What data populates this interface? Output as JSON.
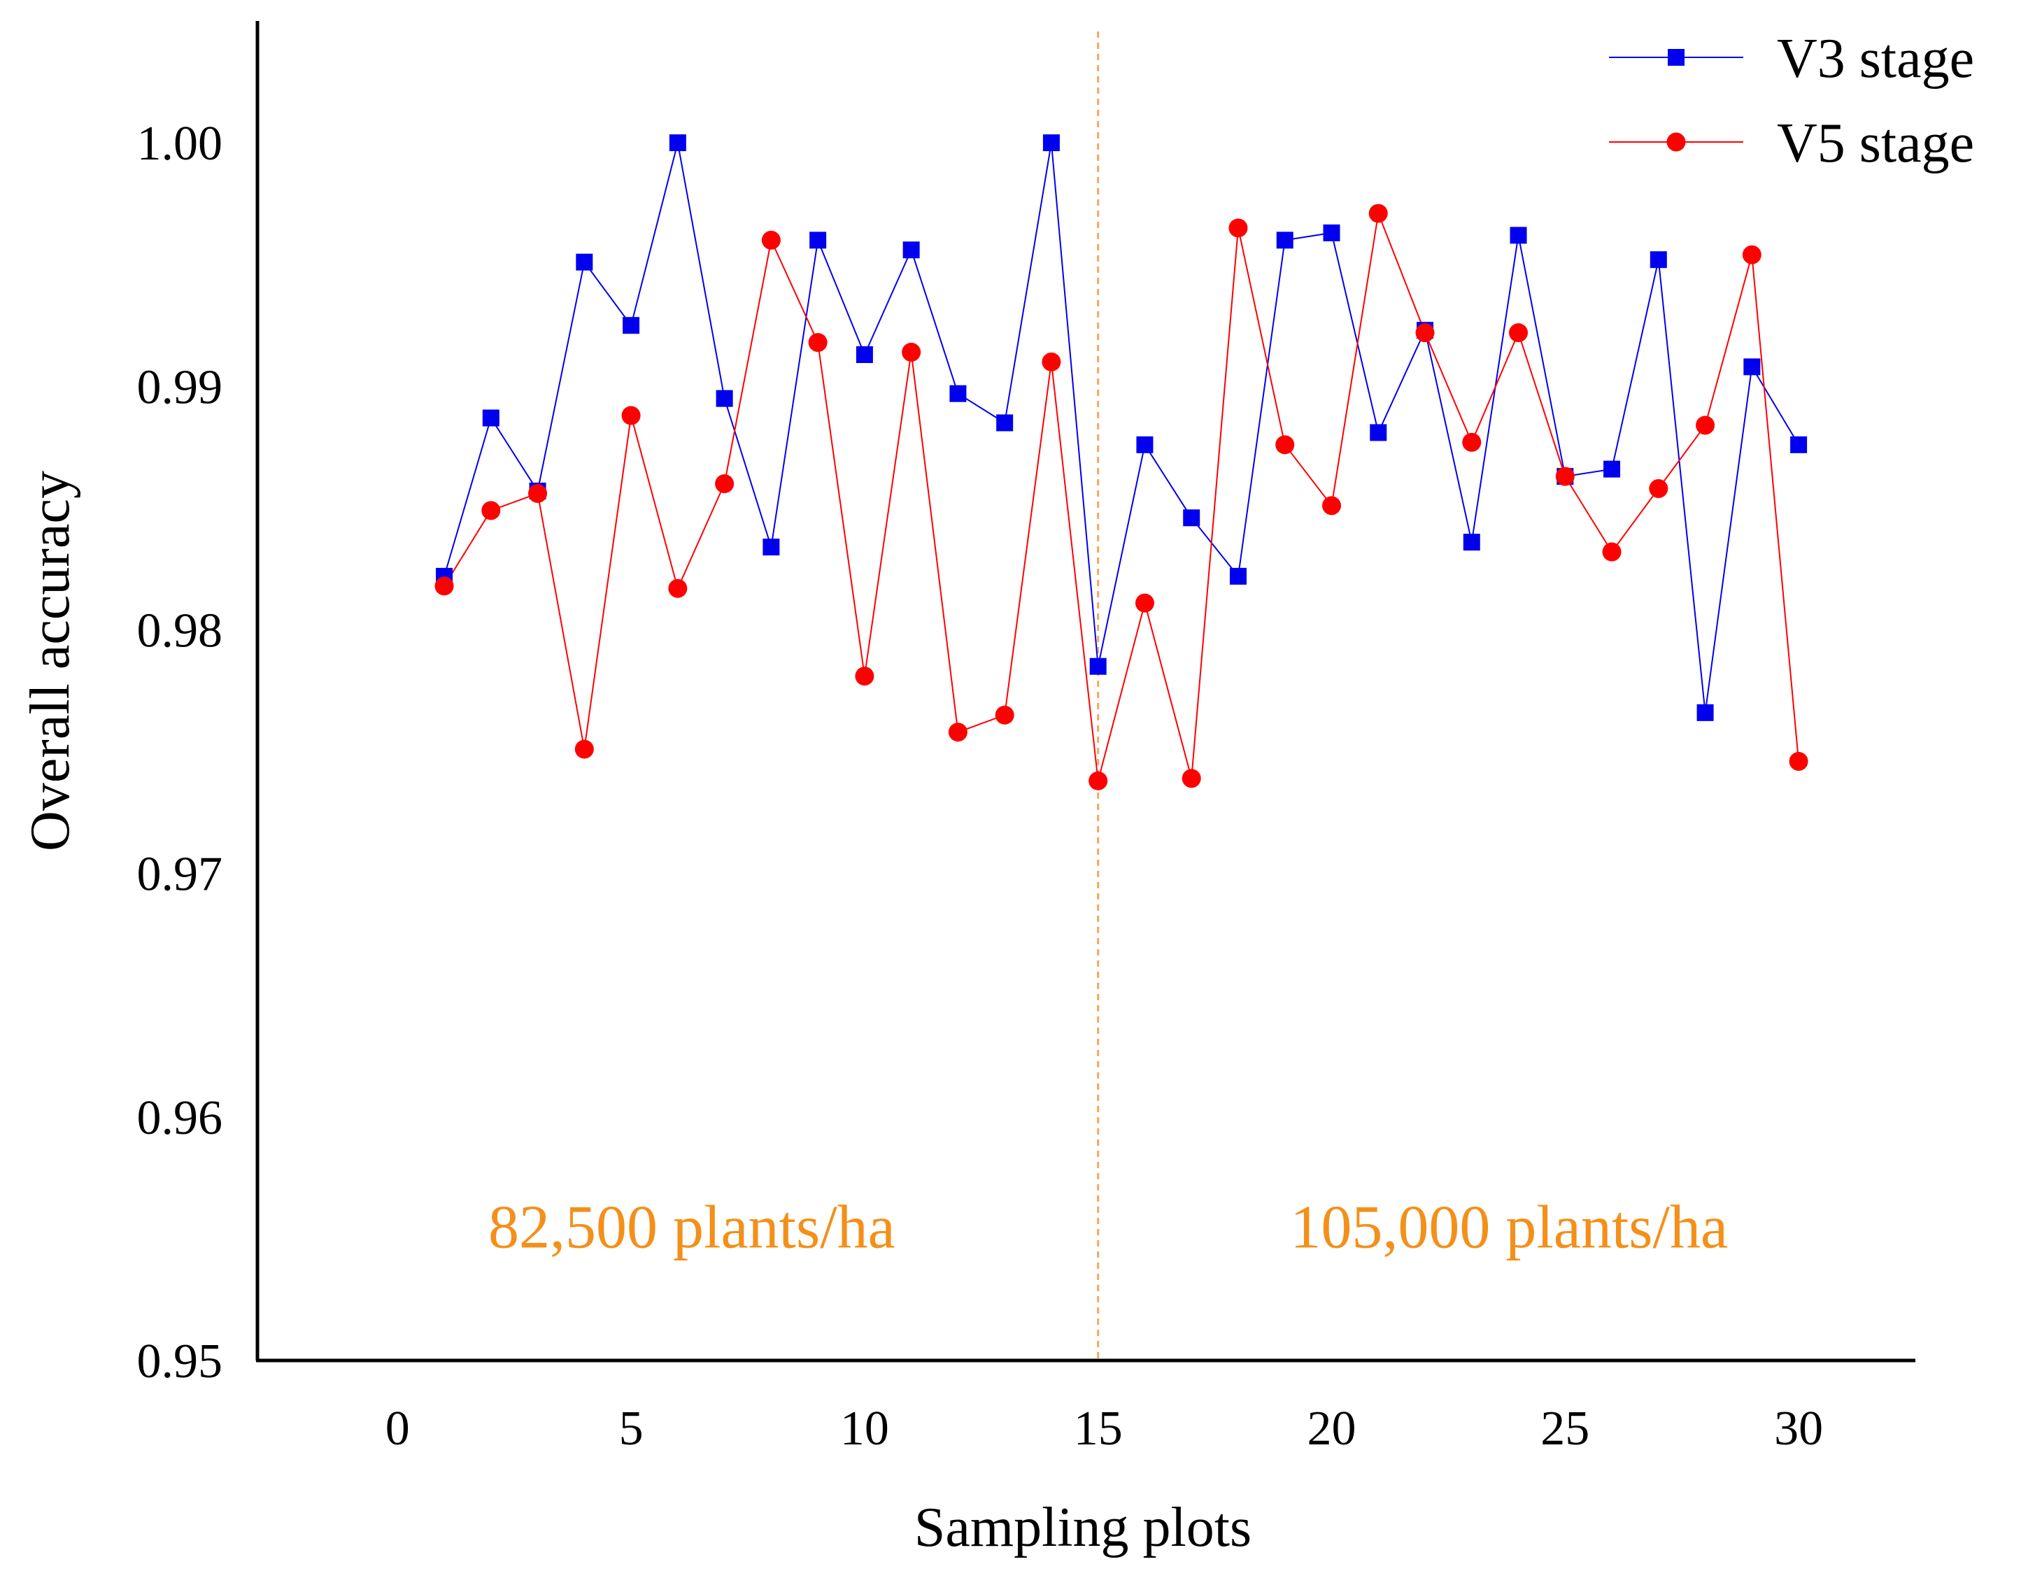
{
  "chart_data": {
    "type": "line",
    "title": "",
    "xlabel": "Sampling plots",
    "ylabel": "Overall accuracy",
    "xlim": [
      -3,
      32.5
    ],
    "ylim": [
      0.95,
      1.005
    ],
    "xticks": [
      0,
      5,
      10,
      15,
      20,
      25,
      30
    ],
    "xtick_labels": [
      "0",
      "5",
      "10",
      "15",
      "20",
      "25",
      "30"
    ],
    "yticks": [
      0.95,
      0.96,
      0.97,
      0.98,
      0.99,
      1.0
    ],
    "ytick_labels": [
      "0.95",
      "0.96",
      "0.97",
      "0.98",
      "0.99",
      "1.00"
    ],
    "grid": false,
    "legend_position": "top-right",
    "series": [
      {
        "name": "V3 stage",
        "color": "#0000ee",
        "marker": "square",
        "x": [
          1,
          2,
          3,
          4,
          5,
          6,
          7,
          8,
          9,
          10,
          11,
          12,
          13,
          14,
          15,
          16,
          17,
          18,
          19,
          20,
          21,
          22,
          23,
          24,
          25,
          26,
          27,
          28,
          29,
          30
        ],
        "values": [
          0.9822,
          0.9887,
          0.9857,
          0.9951,
          0.9925,
          1.0,
          0.9895,
          0.9834,
          0.996,
          0.9913,
          0.9956,
          0.9897,
          0.9885,
          1.0,
          0.9785,
          0.9876,
          0.9846,
          0.9822,
          0.996,
          0.9963,
          0.9881,
          0.9923,
          0.9836,
          0.9962,
          0.9863,
          0.9866,
          0.9952,
          0.9766,
          0.9908,
          0.9876
        ]
      },
      {
        "name": "V5 stage",
        "color": "#ff0000",
        "marker": "circle",
        "x": [
          1,
          2,
          3,
          4,
          5,
          6,
          7,
          8,
          9,
          10,
          11,
          12,
          13,
          14,
          15,
          16,
          17,
          18,
          19,
          20,
          21,
          22,
          23,
          24,
          25,
          26,
          27,
          28,
          29,
          30
        ],
        "values": [
          0.9818,
          0.9849,
          0.9856,
          0.9751,
          0.9888,
          0.9817,
          0.986,
          0.996,
          0.9918,
          0.9781,
          0.9914,
          0.9758,
          0.9765,
          0.991,
          0.9738,
          0.9811,
          0.9739,
          0.9965,
          0.9876,
          0.9851,
          0.9971,
          0.9922,
          0.9877,
          0.9922,
          0.9863,
          0.9832,
          0.9858,
          0.9884,
          0.9954,
          0.9746
        ]
      }
    ],
    "annotations": [
      {
        "type": "vline",
        "x": 15,
        "color": "#f6a85a",
        "style": "dashed"
      },
      {
        "type": "text",
        "text": "82,500 plants/ha",
        "x": 6.3,
        "y": 0.9555,
        "color": "#f39019"
      },
      {
        "type": "text",
        "text": "105,000 plants/ha",
        "x": 23.8,
        "y": 0.9555,
        "color": "#f39019"
      }
    ]
  }
}
